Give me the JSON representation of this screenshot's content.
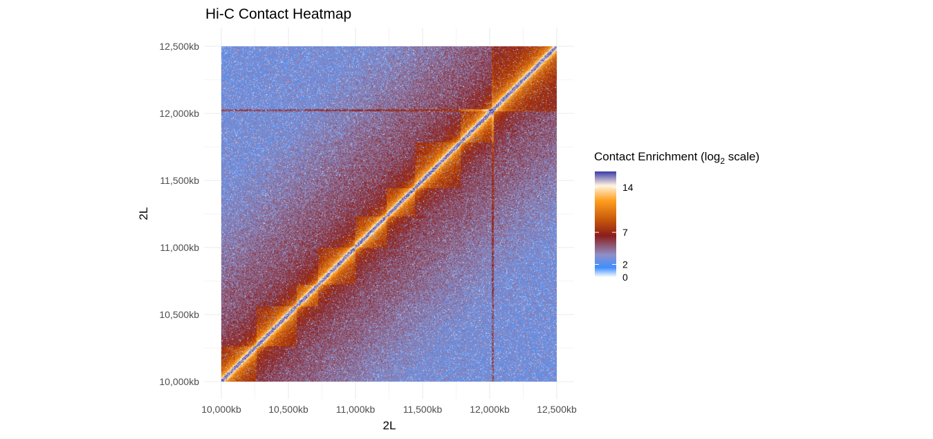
{
  "chart_data": {
    "type": "heatmap",
    "title": "Hi-C Contact Heatmap",
    "xlabel": "2L",
    "ylabel": "2L",
    "x_ticks": [
      "10,000kb",
      "10,500kb",
      "11,000kb",
      "11,500kb",
      "12,000kb",
      "12,500kb"
    ],
    "y_ticks": [
      "10,000kb",
      "10,500kb",
      "11,000kb",
      "11,500kb",
      "12,000kb",
      "12,500kb"
    ],
    "x_range_kb": [
      10000,
      12500
    ],
    "y_range_kb": [
      10000,
      12500
    ],
    "tick_values_kb": [
      10000,
      10500,
      11000,
      11500,
      12000,
      12500
    ],
    "legend": {
      "title_main": "Contact Enrichment (log",
      "title_sub": "2",
      "title_end": " scale)",
      "ticks": [
        "0",
        "2",
        "7",
        "14"
      ],
      "tick_values": [
        0,
        2,
        7,
        14
      ],
      "range": [
        0,
        16.5
      ],
      "colors": [
        "#ffffff",
        "#3f8fff",
        "#8f8fc8",
        "#8b1d1a",
        "#c8580a",
        "#ffa020",
        "#fff4e0",
        "#3a3aa8"
      ]
    },
    "grid": true,
    "legend_position": "right",
    "domain_boundaries_kb": [
      10260,
      10560,
      10720,
      11000,
      11230,
      11440,
      11780,
      12030
    ],
    "strong_stripes_kb": [
      12020
    ]
  }
}
